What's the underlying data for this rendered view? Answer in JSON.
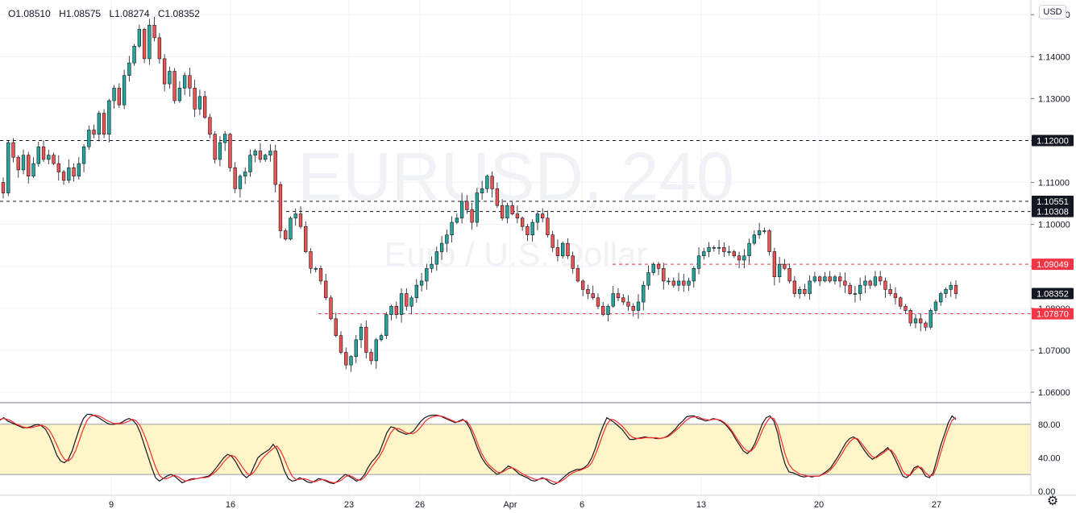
{
  "ohlc": {
    "open": "O1.08510",
    "high": "H1.08575",
    "low": "L1.08274",
    "close": "C1.08352"
  },
  "currency_button": "USD",
  "watermark": {
    "symbol": "EURUSD, 240",
    "description": "Euro / U.S. Dollar"
  },
  "settings_icon": "gear-icon",
  "colors": {
    "up": "#26a69a",
    "down": "#ef5350",
    "stoch_k": "#131722",
    "stoch_d": "#ff2a2a",
    "band": "#fff5c8",
    "label_dark": "#131722",
    "label_red": "#f23645"
  },
  "chart_data": [
    {
      "type": "candlestick",
      "title": "",
      "ylim": [
        1.0575,
        1.1535
      ],
      "y_ticks": [
        "1.06000",
        "1.07000",
        "1.08000",
        "1.09000",
        "1.10000",
        "1.11000",
        "1.12000",
        "1.13000",
        "1.14000",
        "1.15000"
      ],
      "x_tick_labels": [
        "9",
        "16",
        "23",
        "26",
        "Apr",
        "6",
        "13",
        "20",
        "27"
      ],
      "horizontal_lines": [
        {
          "price": 1.12,
          "label": "1.12000",
          "style": "black-dashed"
        },
        {
          "price": 1.10551,
          "label": "1.10551",
          "style": "black-dashed"
        },
        {
          "price": 1.10308,
          "label": "1.10308",
          "style": "black-dashed"
        },
        {
          "price": 1.09049,
          "label": "1.09049",
          "style": "red-dashed"
        },
        {
          "price": 1.0787,
          "label": "1.07870",
          "style": "red-dashed"
        }
      ],
      "last_price": {
        "price": 1.08352,
        "label": "1.08352"
      },
      "closes": [
        1.1075,
        1.1195,
        1.116,
        1.113,
        1.1165,
        1.1115,
        1.1145,
        1.1185,
        1.1155,
        1.1165,
        1.1145,
        1.1125,
        1.1105,
        1.1135,
        1.1115,
        1.1145,
        1.1185,
        1.1225,
        1.1215,
        1.1265,
        1.1215,
        1.1295,
        1.1325,
        1.1285,
        1.1355,
        1.1385,
        1.1425,
        1.1465,
        1.1395,
        1.1475,
        1.1445,
        1.1395,
        1.1335,
        1.1365,
        1.1295,
        1.1325,
        1.1355,
        1.1325,
        1.1275,
        1.1305,
        1.1255,
        1.1215,
        1.1155,
        1.1195,
        1.1215,
        1.1135,
        1.1085,
        1.1115,
        1.1125,
        1.1165,
        1.1175,
        1.1155,
        1.1165,
        1.1175,
        1.1095,
        1.0985,
        1.0965,
        1.1015,
        1.1025,
        1.0995,
        1.0935,
        1.0895,
        1.0895,
        1.0865,
        1.0825,
        1.0775,
        1.0735,
        1.0695,
        1.0665,
        1.0685,
        1.0725,
        1.0755,
        1.0695,
        1.0675,
        1.0725,
        1.0735,
        1.0785,
        1.0805,
        1.0785,
        1.0835,
        1.0805,
        1.0825,
        1.0855,
        1.0865,
        1.0895,
        1.0905,
        1.0935,
        1.0955,
        1.0975,
        1.1005,
        1.1015,
        1.1055,
        1.1035,
        1.1005,
        1.1075,
        1.1085,
        1.1115,
        1.1085,
        1.1045,
        1.1015,
        1.1045,
        1.1025,
        1.1015,
        1.0995,
        1.0975,
        1.1005,
        1.1025,
        1.1015,
        1.0975,
        1.0945,
        1.0925,
        1.0955,
        1.0925,
        1.0895,
        1.0865,
        1.0845,
        1.0835,
        1.0825,
        1.0805,
        1.0785,
        1.0805,
        1.0835,
        1.0825,
        1.0815,
        1.0805,
        1.0795,
        1.0815,
        1.0855,
        1.0885,
        1.0905,
        1.0895,
        1.0865,
        1.0865,
        1.0855,
        1.0865,
        1.0855,
        1.0865,
        1.0895,
        1.0925,
        1.0935,
        1.0945,
        1.0945,
        1.0945,
        1.0935,
        1.0935,
        1.0925,
        1.0915,
        1.0925,
        1.0955,
        1.0975,
        1.0985,
        1.0985,
        1.0935,
        1.0875,
        1.0905,
        1.0895,
        1.0865,
        1.0835,
        1.0845,
        1.0835,
        1.0865,
        1.0875,
        1.0865,
        1.0875,
        1.0865,
        1.0875,
        1.0865,
        1.0855,
        1.0835,
        1.0835,
        1.0855,
        1.0865,
        1.0855,
        1.0875,
        1.0865,
        1.0845,
        1.0835,
        1.0825,
        1.0805,
        1.0795,
        1.0765,
        1.0775,
        1.0765,
        1.0755,
        1.0795,
        1.0815,
        1.0835,
        1.0845,
        1.0855,
        1.0835
      ]
    },
    {
      "type": "line",
      "title": "",
      "ylim": [
        -5,
        105
      ],
      "y_ticks": [
        "0.00",
        "40.00",
        "80.00"
      ],
      "band": [
        20,
        80
      ],
      "series": [
        {
          "values": [
            85,
            88,
            84,
            82,
            80,
            78,
            76,
            76,
            77,
            79,
            80,
            78,
            74,
            66,
            55,
            43,
            36,
            34,
            38,
            48,
            62,
            76,
            87,
            92,
            92,
            90,
            88,
            85,
            82,
            80,
            80,
            81,
            82,
            85,
            87,
            85,
            80,
            70,
            56,
            42,
            28,
            16,
            12,
            15,
            18,
            20,
            18,
            14,
            10,
            12,
            14,
            15,
            15,
            16,
            17,
            18,
            22,
            28,
            34,
            40,
            44,
            42,
            36,
            28,
            20,
            16,
            20,
            30,
            40,
            44,
            47,
            50,
            56,
            50,
            38,
            24,
            15,
            12,
            13,
            16,
            14,
            11,
            10,
            12,
            15,
            14,
            12,
            10,
            9,
            12,
            16,
            20,
            18,
            15,
            12,
            14,
            19,
            28,
            35,
            40,
            46,
            58,
            70,
            77,
            76,
            72,
            70,
            68,
            69,
            72,
            78,
            84,
            88,
            90,
            91,
            91,
            90,
            88,
            86,
            84,
            82,
            84,
            86,
            82,
            74,
            62,
            50,
            40,
            33,
            28,
            24,
            20,
            22,
            26,
            30,
            28,
            24,
            20,
            18,
            16,
            13,
            12,
            14,
            16,
            14,
            10,
            8,
            10,
            14,
            18,
            22,
            24,
            26,
            26,
            28,
            32,
            40,
            52,
            66,
            78,
            88,
            85,
            82,
            78,
            74,
            68,
            62,
            62,
            63,
            64,
            65,
            64,
            64,
            63,
            63,
            64,
            66,
            70,
            74,
            80,
            84,
            89,
            90,
            90,
            87,
            86,
            84,
            85,
            87,
            86,
            84,
            81,
            76,
            70,
            62,
            55,
            48,
            45,
            49,
            57,
            69,
            81,
            88,
            90,
            84,
            70,
            48,
            32,
            23,
            22,
            20,
            18,
            17,
            18,
            17,
            18,
            18,
            21,
            24,
            28,
            35,
            42,
            50,
            58,
            63,
            65,
            62,
            55,
            48,
            42,
            38,
            41,
            45,
            48,
            52,
            47,
            38,
            28,
            18,
            16,
            20,
            28,
            30,
            26,
            18,
            16,
            22,
            38,
            55,
            68,
            82,
            90,
            86
          ]
        },
        {
          "values": [
            86,
            87,
            86,
            84,
            81,
            79,
            77,
            76,
            76,
            77,
            78,
            79,
            77,
            73,
            65,
            55,
            45,
            38,
            36,
            40,
            49,
            62,
            75,
            85,
            90,
            91,
            90,
            88,
            85,
            83,
            81,
            81,
            81,
            82,
            84,
            86,
            84,
            78,
            68,
            56,
            42,
            29,
            19,
            15,
            15,
            17,
            19,
            17,
            14,
            12,
            13,
            14,
            15,
            16,
            16,
            17,
            20,
            24,
            29,
            35,
            40,
            43,
            41,
            35,
            28,
            22,
            19,
            23,
            30,
            38,
            43,
            47,
            51,
            54,
            48,
            38,
            27,
            18,
            14,
            14,
            15,
            14,
            12,
            11,
            13,
            14,
            13,
            11,
            10,
            11,
            13,
            17,
            19,
            17,
            14,
            13,
            16,
            22,
            29,
            35,
            41,
            49,
            60,
            70,
            75,
            75,
            73,
            70,
            69,
            69,
            72,
            77,
            83,
            87,
            89,
            90,
            90,
            89,
            87,
            85,
            83,
            83,
            85,
            84,
            78,
            68,
            56,
            45,
            37,
            31,
            27,
            23,
            22,
            24,
            27,
            28,
            26,
            23,
            20,
            18,
            16,
            14,
            14,
            15,
            15,
            13,
            11,
            10,
            12,
            15,
            19,
            22,
            24,
            25,
            27,
            29,
            34,
            44,
            56,
            69,
            80,
            86,
            85,
            82,
            78,
            73,
            67,
            64,
            63,
            63,
            64,
            64,
            64,
            64,
            63,
            64,
            65,
            68,
            72,
            76,
            81,
            85,
            88,
            89,
            89,
            87,
            86,
            85,
            86,
            86,
            85,
            82,
            78,
            72,
            65,
            58,
            52,
            48,
            48,
            53,
            62,
            73,
            82,
            88,
            87,
            78,
            61,
            44,
            32,
            26,
            23,
            20,
            19,
            18,
            18,
            18,
            18,
            20,
            22,
            26,
            31,
            38,
            45,
            53,
            59,
            63,
            63,
            58,
            52,
            46,
            41,
            40,
            43,
            46,
            50,
            49,
            43,
            34,
            24,
            19,
            19,
            25,
            29,
            28,
            22,
            18,
            19,
            30,
            46,
            61,
            74,
            85,
            88
          ]
        }
      ]
    }
  ]
}
